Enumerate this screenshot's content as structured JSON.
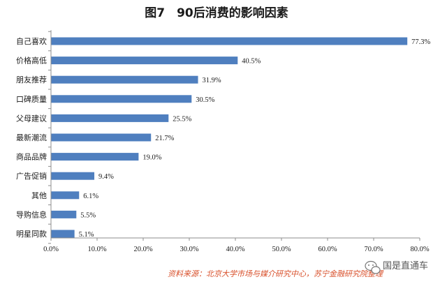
{
  "chart_data": {
    "type": "bar",
    "orientation": "horizontal",
    "title": "图7　90后消费的影响因素",
    "categories": [
      "自己喜欢",
      "价格高低",
      "朋友推荐",
      "口碑质量",
      "父母建议",
      "最新潮流",
      "商品品牌",
      "广告促销",
      "其他",
      "导购信息",
      "明星同款"
    ],
    "values": [
      77.3,
      40.5,
      31.9,
      30.5,
      25.5,
      21.7,
      19.0,
      9.4,
      6.1,
      5.5,
      5.1
    ],
    "value_labels": [
      "77.3%",
      "40.5%",
      "31.9%",
      "30.5%",
      "25.5%",
      "21.7%",
      "19.0%",
      "9.4%",
      "6.1%",
      "5.5%",
      "5.1%"
    ],
    "xlim": [
      0,
      80
    ],
    "xticks": [
      0,
      10,
      20,
      30,
      40,
      50,
      60,
      70,
      80
    ],
    "xtick_labels": [
      "0.0%",
      "10.0%",
      "20.0%",
      "30.0%",
      "40.0%",
      "50.0%",
      "60.0%",
      "70.0%",
      "80.0%"
    ],
    "grid": false,
    "legend": "none",
    "bar_color": "#4f7fbf",
    "source": "资料来源：北京大学市场与媒介研究中心，苏宁金融研究院整理"
  },
  "watermark": {
    "text": "国是直通车",
    "icon": "wechat-icon"
  },
  "colors": {
    "bar": "#4f7fbf",
    "source_text": "#d84f2a",
    "axis": "#8c8c8c"
  }
}
